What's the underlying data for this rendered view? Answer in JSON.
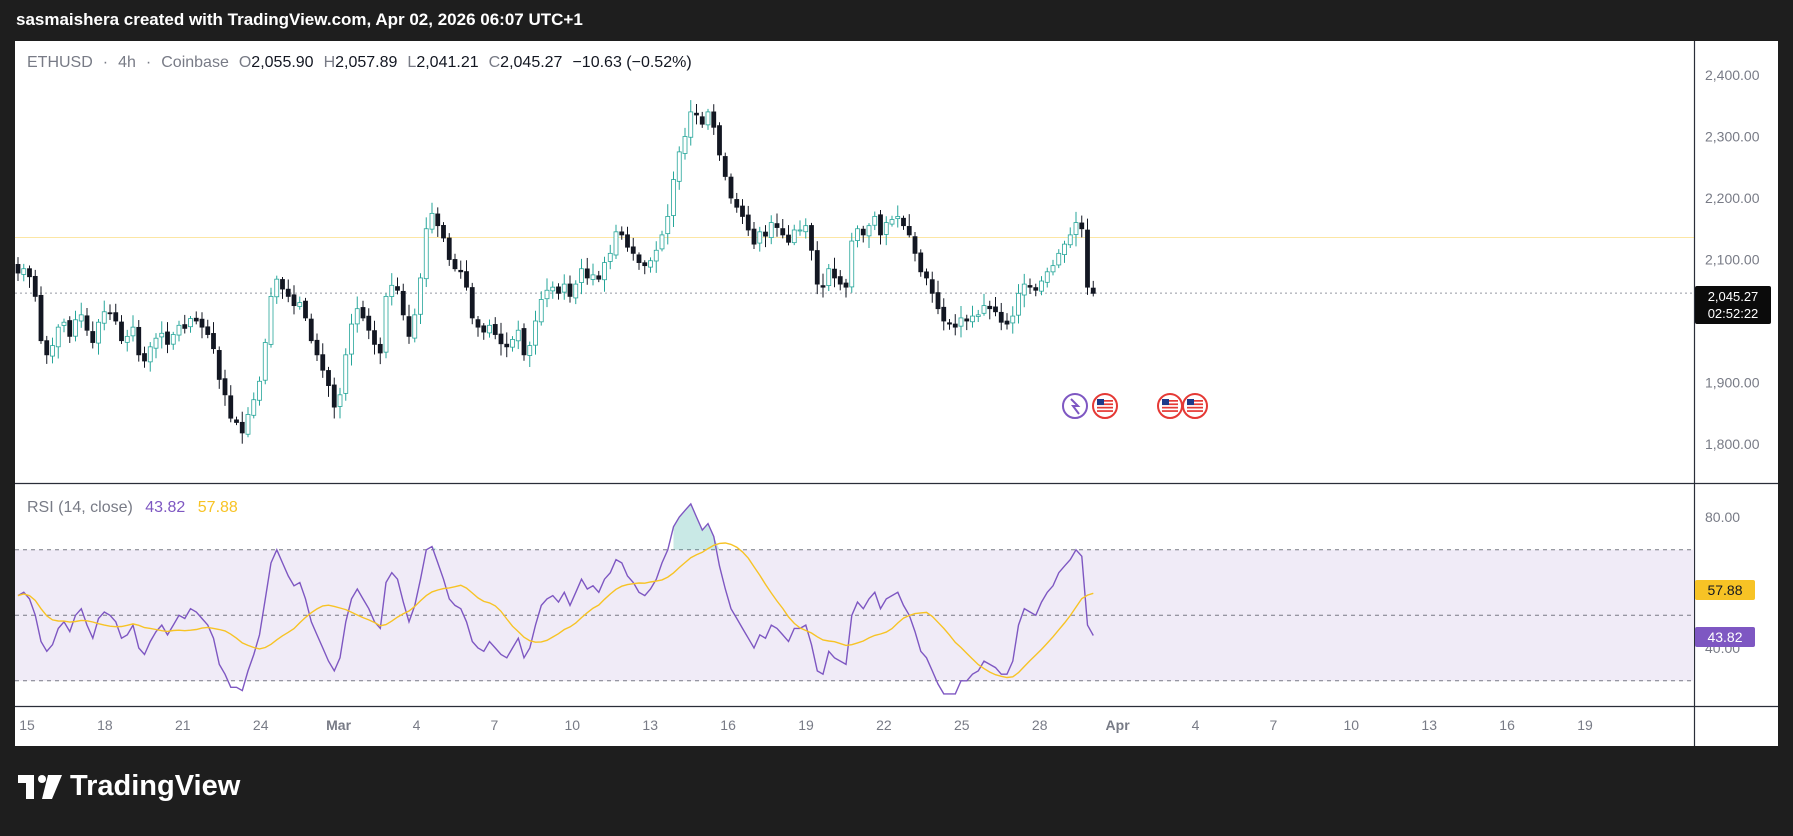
{
  "header": {
    "text": "sasmaishera created with TradingView.com, Apr 02, 2026 06:07 UTC+1"
  },
  "legend": {
    "symbol": "ETHUSD",
    "sep1": "·",
    "interval": "4h",
    "sep2": "·",
    "exchange": "Coinbase",
    "o_label": "O",
    "o_value": "2,055.90",
    "h_label": "H",
    "h_value": "2,057.89",
    "l_label": "L",
    "l_value": "2,041.21",
    "c_label": "C",
    "c_value": "2,045.27",
    "change": "−10.63 (−0.52%)"
  },
  "price_axis": {
    "ticks": [
      "2,400.00",
      "2,300.00",
      "2,200.00",
      "2,100.00",
      "1,900.00",
      "1,800.00"
    ],
    "current_price": "2,045.27",
    "countdown": "02:52:22"
  },
  "rsi": {
    "label": "RSI (14, close)",
    "value": "43.82",
    "ma_value": "57.88",
    "axis_ticks": [
      "80.00",
      "40.00"
    ],
    "tag_rsi": "43.82",
    "tag_ma": "57.88"
  },
  "time_axis": {
    "labels": [
      "15",
      "18",
      "21",
      "24",
      "Mar",
      "4",
      "7",
      "10",
      "13",
      "16",
      "19",
      "22",
      "25",
      "28",
      "Apr",
      "4",
      "7",
      "10",
      "13",
      "16",
      "19"
    ],
    "bold": [
      "Mar",
      "Apr"
    ]
  },
  "footer": {
    "brand": "TradingView"
  },
  "colors": {
    "up": "#26a69a",
    "down": "#131722",
    "rsi_line": "#7e57c2",
    "rsi_ma": "#f7c325",
    "rsi_band": "#ede7f6",
    "price_level_line": "#f7c325"
  },
  "chart_data": {
    "type": "candlestick",
    "title": "ETHUSD · 4h · Coinbase",
    "ylim": [
      1760,
      2430
    ],
    "x_start": "Feb 14",
    "x_end": "Apr 02",
    "closes": [
      2078,
      2085,
      2072,
      2040,
      1968,
      1945,
      1960,
      1990,
      1998,
      1975,
      2002,
      2010,
      1985,
      1965,
      1998,
      2015,
      2012,
      2000,
      1968,
      1975,
      1990,
      1945,
      1935,
      1958,
      1972,
      1980,
      1962,
      1978,
      1993,
      1988,
      2004,
      2000,
      1990,
      1978,
      1955,
      1905,
      1880,
      1842,
      1835,
      1818,
      1848,
      1872,
      1902,
      1965,
      2040,
      2068,
      2052,
      2040,
      2025,
      2030,
      2005,
      1968,
      1945,
      1920,
      1895,
      1860,
      1880,
      1945,
      1995,
      2020,
      2005,
      1985,
      1962,
      1948,
      2040,
      2058,
      2050,
      2010,
      1975,
      2010,
      2070,
      2150,
      2175,
      2155,
      2135,
      2100,
      2085,
      2080,
      2055,
      2005,
      1990,
      1982,
      1993,
      1978,
      1963,
      1958,
      1970,
      1985,
      1945,
      1960,
      2000,
      2035,
      2050,
      2055,
      2045,
      2060,
      2040,
      2060,
      2085,
      2070,
      2075,
      2068,
      2095,
      2110,
      2145,
      2140,
      2120,
      2110,
      2095,
      2090,
      2098,
      2115,
      2140,
      2170,
      2230,
      2275,
      2300,
      2340,
      2335,
      2320,
      2340,
      2315,
      2270,
      2235,
      2200,
      2185,
      2170,
      2148,
      2125,
      2145,
      2138,
      2160,
      2152,
      2140,
      2128,
      2148,
      2148,
      2155,
      2115,
      2060,
      2055,
      2085,
      2070,
      2060,
      2055,
      2130,
      2150,
      2140,
      2155,
      2170,
      2140,
      2160,
      2165,
      2170,
      2155,
      2140,
      2110,
      2080,
      2070,
      2045,
      2020,
      2000,
      1995,
      1990,
      2005,
      2000,
      2008,
      2010,
      2025,
      2020,
      2015,
      1998,
      1995,
      2008,
      2045,
      2060,
      2055,
      2050,
      2065,
      2080,
      2090,
      2110,
      2125,
      2140,
      2160,
      2150,
      2055,
      2045
    ],
    "rsi": {
      "name": "RSI",
      "levels": [
        70,
        50,
        30
      ],
      "ylim": [
        20,
        90
      ],
      "values": [
        56,
        57,
        55,
        50,
        42,
        39,
        41,
        46,
        48,
        45,
        50,
        52,
        47,
        43,
        49,
        51,
        50,
        48,
        43,
        44,
        47,
        40,
        38,
        42,
        45,
        47,
        44,
        47,
        50,
        49,
        52,
        51,
        49,
        47,
        43,
        35,
        32,
        28,
        28,
        27,
        33,
        38,
        44,
        55,
        66,
        70,
        66,
        62,
        59,
        60,
        55,
        48,
        44,
        40,
        36,
        33,
        37,
        48,
        55,
        58,
        55,
        52,
        48,
        46,
        60,
        63,
        61,
        54,
        48,
        53,
        61,
        70,
        71,
        66,
        61,
        55,
        53,
        52,
        48,
        42,
        40,
        39,
        42,
        40,
        38,
        37,
        40,
        43,
        37,
        40,
        47,
        53,
        55,
        56,
        54,
        57,
        53,
        57,
        61,
        58,
        59,
        57,
        61,
        63,
        67,
        66,
        62,
        60,
        57,
        56,
        58,
        61,
        66,
        70,
        77,
        80,
        82,
        84,
        80,
        76,
        78,
        74,
        65,
        58,
        52,
        49,
        46,
        43,
        40,
        44,
        43,
        47,
        46,
        44,
        42,
        46,
        46,
        47,
        41,
        33,
        32,
        39,
        37,
        36,
        35,
        50,
        54,
        52,
        55,
        57,
        52,
        55,
        56,
        57,
        53,
        50,
        45,
        39,
        37,
        33,
        29,
        26,
        26,
        26,
        30,
        30,
        32,
        33,
        36,
        35,
        34,
        32,
        32,
        36,
        47,
        52,
        51,
        50,
        54,
        57,
        59,
        63,
        65,
        67,
        70,
        68,
        47,
        43.82
      ]
    }
  }
}
